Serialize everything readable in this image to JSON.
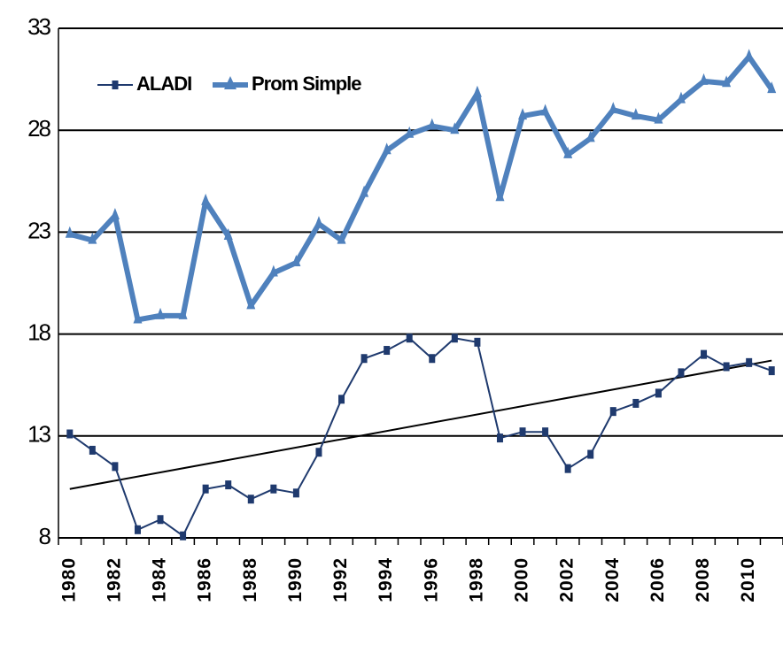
{
  "chart_data": {
    "type": "line",
    "categories": [
      "1980",
      null,
      "1982",
      null,
      "1984",
      null,
      "1986",
      null,
      "1988",
      null,
      "1990",
      null,
      "1992",
      null,
      "1994",
      null,
      "1996",
      null,
      "1998",
      null,
      "2000",
      null,
      "2002",
      null,
      "2004",
      null,
      "2006",
      null,
      "2008",
      null,
      "2010",
      null
    ],
    "series": [
      {
        "name": "ALADI",
        "color": "#1f3a6e",
        "values": [
          13.1,
          12.3,
          11.5,
          8.4,
          8.9,
          8.1,
          10.4,
          10.6,
          9.9,
          10.4,
          10.2,
          12.2,
          14.8,
          16.8,
          17.2,
          17.8,
          16.8,
          17.8,
          17.6,
          12.9,
          13.2,
          13.2,
          11.4,
          12.1,
          14.2,
          14.6,
          15.1,
          16.1,
          17.0,
          16.4,
          16.6,
          16.2
        ]
      },
      {
        "name": "Prom Simple",
        "color": "#4f81bd",
        "values": [
          22.9,
          22.6,
          23.8,
          18.7,
          18.9,
          18.9,
          24.5,
          22.8,
          19.4,
          21.0,
          21.5,
          23.4,
          22.6,
          24.9,
          27.0,
          27.8,
          28.2,
          28.0,
          29.8,
          24.7,
          28.7,
          28.9,
          26.8,
          27.6,
          29.0,
          28.7,
          28.5,
          29.5,
          30.4,
          30.3,
          31.6,
          30.0
        ]
      }
    ],
    "trendline": {
      "color": "#000000",
      "values": [
        10.4,
        16.7
      ]
    },
    "ylim": [
      8,
      33
    ],
    "yticks": [
      8,
      13,
      18,
      23,
      28,
      33
    ],
    "grid": true
  }
}
